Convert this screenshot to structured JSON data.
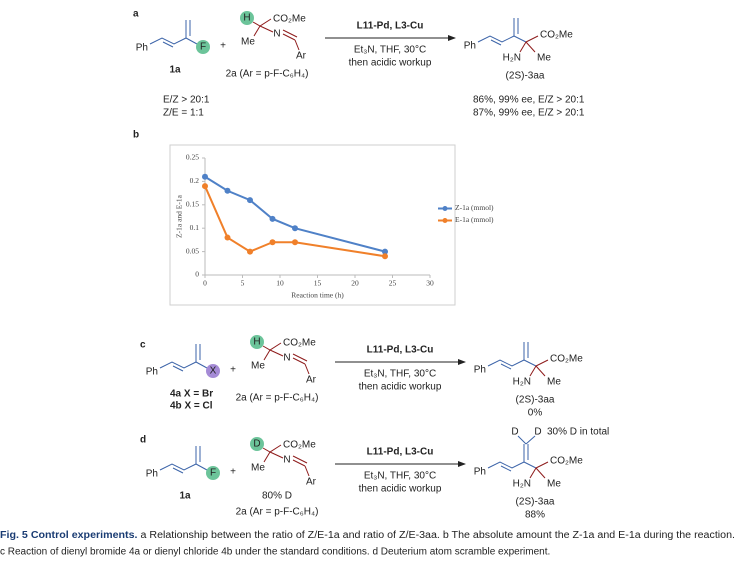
{
  "panel_labels": [
    "a",
    "b",
    "c",
    "d"
  ],
  "scheme_a": {
    "diene": {
      "ph": "Ph",
      "leaving_group": "F",
      "name": "1a",
      "ratios": [
        "E/Z > 20:1",
        "Z/E = 1:1"
      ]
    },
    "plus": "+",
    "imine": {
      "alpha_atom": "H",
      "ester": "CO₂Me",
      "me": "Me",
      "n": "N",
      "ar": "Ar",
      "name": "2a (Ar = p-F-C₆H₄)"
    },
    "conditions": [
      "L11-Pd, L3-Cu",
      "Et₃N, THF, 30°C",
      "then acidic workup"
    ],
    "product": {
      "ph": "Ph",
      "ester": "CO₂Me",
      "amine": "H₂N",
      "me": "Me",
      "name": "(2S)-3aa",
      "results": [
        "86%, 99% ee, E/Z > 20:1",
        "87%, 99% ee, E/Z > 20:1"
      ]
    }
  },
  "chart_data": {
    "type": "line",
    "x": [
      0,
      3,
      6,
      9,
      12,
      24
    ],
    "series": [
      {
        "name": "Z-1a (mmol)",
        "color": "#4f81c7",
        "values": [
          0.21,
          0.18,
          0.16,
          0.12,
          0.1,
          0.05
        ]
      },
      {
        "name": "E-1a (mmol)",
        "color": "#f0802a",
        "values": [
          0.19,
          0.08,
          0.05,
          0.07,
          0.07,
          0.04
        ]
      }
    ],
    "x_label": "Reaction time (h)",
    "y_label": "Z-1a and E-1a",
    "xlim": [
      0,
      30
    ],
    "xticks": [
      0,
      5,
      10,
      15,
      20,
      25,
      30
    ],
    "ylim": [
      0,
      0.25
    ],
    "yticks": [
      0,
      0.05,
      0.1,
      0.15,
      0.2,
      0.25
    ],
    "grid": false,
    "legend": "right"
  },
  "scheme_c": {
    "diene": {
      "ph": "Ph",
      "leaving_group": "X",
      "names": [
        "4a X = Br",
        "4b X = Cl"
      ]
    },
    "plus": "+",
    "imine": {
      "alpha_atom": "H",
      "ester": "CO₂Me",
      "me": "Me",
      "n": "N",
      "ar": "Ar",
      "name": "2a (Ar = p-F-C₆H₄)"
    },
    "conditions": [
      "L11-Pd, L3-Cu",
      "Et₃N, THF, 30°C",
      "then acidic workup"
    ],
    "product": {
      "ph": "Ph",
      "ester": "CO₂Me",
      "amine": "H₂N",
      "me": "Me",
      "name": "(2S)-3aa",
      "result": "0%"
    }
  },
  "scheme_d": {
    "diene": {
      "ph": "Ph",
      "leaving_group": "F",
      "name": "1a"
    },
    "plus": "+",
    "imine": {
      "alpha_atom": "D",
      "ester": "CO₂Me",
      "me": "Me",
      "n": "N",
      "ar": "Ar",
      "deuteration": "80% D",
      "name": "2a (Ar = p-F-C₆H₄)"
    },
    "conditions": [
      "L11-Pd, L3-Cu",
      "Et₃N, THF, 30°C",
      "then acidic workup"
    ],
    "product": {
      "deuterium": [
        "D",
        "D"
      ],
      "deuteration": "30% D in total",
      "ph": "Ph",
      "ester": "CO₂Me",
      "amine": "H₂N",
      "me": "Me",
      "name": "(2S)-3aa",
      "result": "88%"
    }
  },
  "caption": {
    "title": "Fig. 5 Control experiments.",
    "lines": [
      "a Relationship between the ratio of Z/E-1a and ratio of Z/E-3aa. b The absolute amount the Z-1a and E-1a during the reaction.",
      "c Reaction of dienyl bromide 4a or dienyl chloride 4b under the standard conditions. d Deuterium atom scramble experiment."
    ]
  }
}
